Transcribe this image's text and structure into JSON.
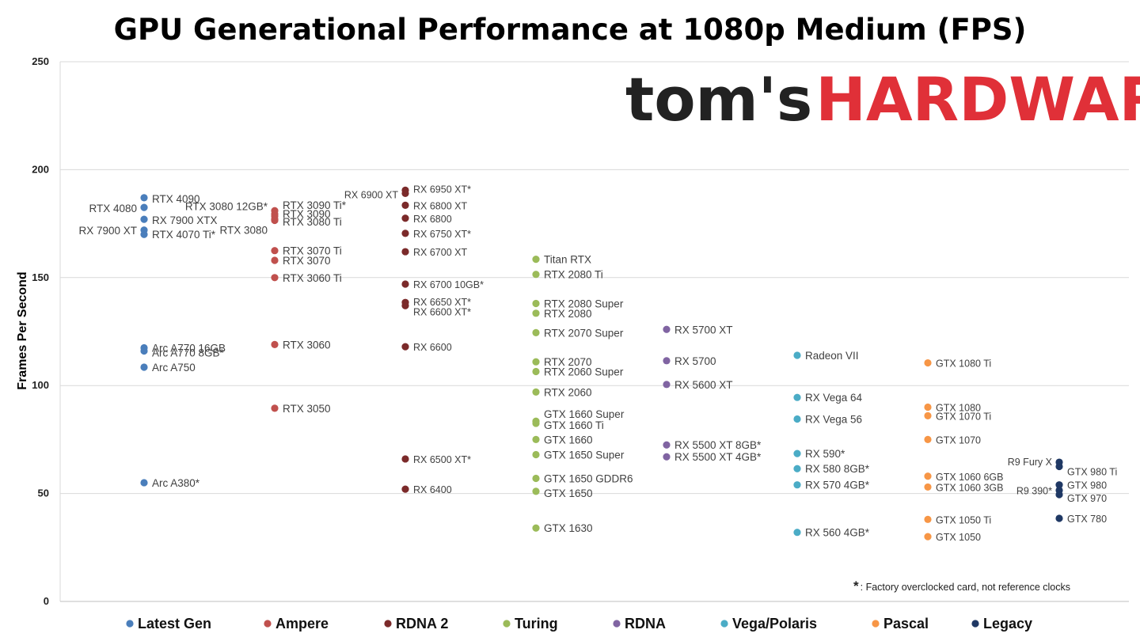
{
  "title": "GPU Generational Performance at 1080p Medium (FPS)",
  "logo": {
    "part1": "tom's",
    "part2": "HARDWARE"
  },
  "footnote": {
    "marker": "*",
    "text": ": Factory overclocked card, not reference clocks"
  },
  "colors": {
    "Latest Gen": "#4a7ebb",
    "Ampere": "#c0504d",
    "RDNA 2": "#7b2a2a",
    "Turing": "#9bbb59",
    "RDNA": "#8064a2",
    "Vega/Polaris": "#4bacc6",
    "Pascal": "#f79646",
    "Legacy": "#1f3864"
  },
  "chart_data": {
    "type": "scatter",
    "title": "GPU Generational Performance at 1080p Medium (FPS)",
    "ylabel": "Frames Per Second",
    "ylim": [
      0,
      250
    ],
    "yticks": [
      0,
      50,
      100,
      150,
      200,
      250
    ],
    "grid": true,
    "legend_position": "bottom",
    "categories": [
      "Latest Gen",
      "Ampere",
      "RDNA 2",
      "Turing",
      "RDNA",
      "Vega/Polaris",
      "Pascal",
      "Legacy"
    ],
    "series": [
      {
        "name": "Latest Gen",
        "points": [
          {
            "label": "RTX 4090",
            "value": 187.0
          },
          {
            "label": "RTX 4080",
            "value": 182.5
          },
          {
            "label": "RX 7900 XTX",
            "value": 177.0
          },
          {
            "label": "RX 7900 XT",
            "value": 172.0
          },
          {
            "label": "RTX 4070 Ti*",
            "value": 170.0
          },
          {
            "label": "Arc A770 16GB",
            "value": 117.5
          },
          {
            "label": "Arc A770 8GB*",
            "value": 116.0
          },
          {
            "label": "Arc A750",
            "value": 108.5
          },
          {
            "label": "Arc A380*",
            "value": 55.0
          }
        ]
      },
      {
        "name": "Ampere",
        "points": [
          {
            "label": "RTX 3090 Ti*",
            "value": 181.0
          },
          {
            "label": "RTX 3080 12GB*",
            "value": 179.5
          },
          {
            "label": "RTX 3090",
            "value": 178.5
          },
          {
            "label": "RTX 3080 Ti",
            "value": 177.0
          },
          {
            "label": "RTX 3080",
            "value": 176.5
          },
          {
            "label": "RTX 3070 Ti",
            "value": 162.5
          },
          {
            "label": "RTX 3070",
            "value": 158.0
          },
          {
            "label": "RTX 3060 Ti",
            "value": 150.0
          },
          {
            "label": "RTX 3060",
            "value": 119.0
          },
          {
            "label": "RTX 3050",
            "value": 89.5
          }
        ]
      },
      {
        "name": "RDNA 2",
        "points": [
          {
            "label": "RX 6950 XT*",
            "value": 190.5
          },
          {
            "label": "RX 6900 XT",
            "value": 189.0
          },
          {
            "label": "RX 6800 XT",
            "value": 183.5
          },
          {
            "label": "RX 6800",
            "value": 177.5
          },
          {
            "label": "RX 6750 XT*",
            "value": 170.5
          },
          {
            "label": "RX 6700 XT",
            "value": 162.0
          },
          {
            "label": "RX 6700 10GB*",
            "value": 147.0
          },
          {
            "label": "RX 6650 XT*",
            "value": 138.5
          },
          {
            "label": "RX 6600 XT*",
            "value": 137.0
          },
          {
            "label": "RX 6600",
            "value": 118.0
          },
          {
            "label": "RX 6500 XT*",
            "value": 66.0
          },
          {
            "label": "RX 6400",
            "value": 52.0
          }
        ]
      },
      {
        "name": "Turing",
        "points": [
          {
            "label": "Titan RTX",
            "value": 158.5
          },
          {
            "label": "RTX 2080 Ti",
            "value": 151.5
          },
          {
            "label": "RTX 2080 Super",
            "value": 138.0
          },
          {
            "label": "RTX 2080",
            "value": 133.5
          },
          {
            "label": "RTX 2070 Super",
            "value": 124.5
          },
          {
            "label": "RTX 2070",
            "value": 111.0
          },
          {
            "label": "RTX 2060 Super",
            "value": 106.5
          },
          {
            "label": "RTX 2060",
            "value": 97.0
          },
          {
            "label": "GTX 1660 Super",
            "value": 83.5
          },
          {
            "label": "GTX 1660 Ti",
            "value": 82.5
          },
          {
            "label": "GTX 1660",
            "value": 75.0
          },
          {
            "label": "GTX 1650 Super",
            "value": 68.0
          },
          {
            "label": "GTX 1650 GDDR6",
            "value": 57.0
          },
          {
            "label": "GTX 1650",
            "value": 51.0
          },
          {
            "label": "GTX 1630",
            "value": 34.0
          }
        ]
      },
      {
        "name": "RDNA",
        "points": [
          {
            "label": "RX 5700 XT",
            "value": 126.0
          },
          {
            "label": "RX 5700",
            "value": 111.5
          },
          {
            "label": "RX 5600 XT",
            "value": 100.5
          },
          {
            "label": "RX 5500 XT 8GB*",
            "value": 72.5
          },
          {
            "label": "RX 5500 XT 4GB*",
            "value": 67.0
          }
        ]
      },
      {
        "name": "Vega/Polaris",
        "points": [
          {
            "label": "Radeon VII",
            "value": 114.0
          },
          {
            "label": "RX Vega 64",
            "value": 94.5
          },
          {
            "label": "RX Vega 56",
            "value": 84.5
          },
          {
            "label": "RX 590*",
            "value": 68.5
          },
          {
            "label": "RX 580 8GB*",
            "value": 61.5
          },
          {
            "label": "RX 570 4GB*",
            "value": 54.0
          },
          {
            "label": "RX 560 4GB*",
            "value": 32.0
          }
        ]
      },
      {
        "name": "Pascal",
        "points": [
          {
            "label": "GTX 1080 Ti",
            "value": 110.5
          },
          {
            "label": "GTX 1080",
            "value": 90.0
          },
          {
            "label": "GTX 1070 Ti",
            "value": 86.0
          },
          {
            "label": "GTX 1070",
            "value": 75.0
          },
          {
            "label": "GTX 1060 6GB",
            "value": 58.0
          },
          {
            "label": "GTX 1060 3GB",
            "value": 53.0
          },
          {
            "label": "GTX 1050 Ti",
            "value": 38.0
          },
          {
            "label": "GTX 1050",
            "value": 30.0
          }
        ]
      },
      {
        "name": "Legacy",
        "points": [
          {
            "label": "R9 Fury X",
            "value": 64.5
          },
          {
            "label": "GTX 980 Ti",
            "value": 62.5
          },
          {
            "label": "GTX 980",
            "value": 54.0
          },
          {
            "label": "R9 390*",
            "value": 51.5
          },
          {
            "label": "GTX 970",
            "value": 49.5
          },
          {
            "label": "GTX 780",
            "value": 38.5
          }
        ]
      }
    ]
  }
}
